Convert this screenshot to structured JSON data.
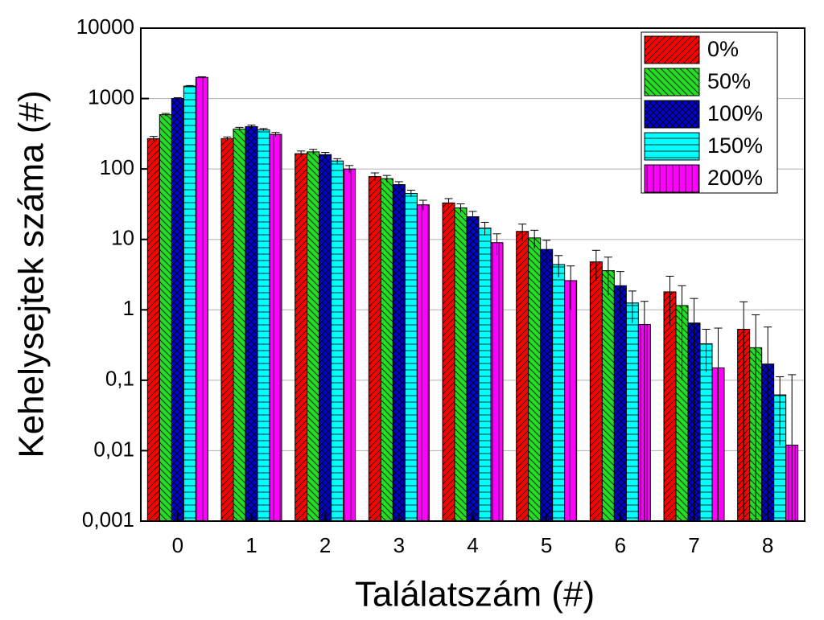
{
  "chart_data": {
    "type": "bar",
    "log_y": true,
    "grid": true,
    "legend": "top-right",
    "xlabel": "Találatszám (#)",
    "ylabel": "Kehelysejtek száma (#)",
    "categories": [
      "0",
      "1",
      "2",
      "3",
      "4",
      "5",
      "6",
      "7",
      "8"
    ],
    "ylim": [
      0.001,
      10000
    ],
    "yticks": [
      {
        "value": 0.001,
        "label": "0,001"
      },
      {
        "value": 0.01,
        "label": "0,01"
      },
      {
        "value": 0.1,
        "label": "0,1"
      },
      1,
      10,
      100,
      1000,
      10000
    ],
    "series": [
      {
        "name": "0%",
        "color": "#ff0000",
        "hatch": "slash",
        "values": [
          270,
          270,
          165,
          78,
          33,
          13,
          4.8,
          1.8,
          0.53
        ],
        "errors": [
          20,
          15,
          15,
          10,
          5,
          3.5,
          2.2,
          1.2,
          0.77
        ]
      },
      {
        "name": "50%",
        "color": "#22dd22",
        "hatch": "backslash",
        "values": [
          590,
          370,
          175,
          73,
          28,
          10.5,
          3.6,
          1.15,
          0.29
        ],
        "errors": [
          25,
          20,
          15,
          8,
          4,
          3,
          2,
          1.05,
          0.56
        ]
      },
      {
        "name": "100%",
        "color": "#0000cc",
        "hatch": "cross",
        "values": [
          1000,
          400,
          160,
          60,
          21,
          7.2,
          2.2,
          0.65,
          0.17
        ],
        "errors": [
          30,
          20,
          12,
          6,
          4,
          2.5,
          1.3,
          0.8,
          0.4
        ]
      },
      {
        "name": "150%",
        "color": "#00ffff",
        "hatch": "horizontal",
        "values": [
          1500,
          360,
          130,
          45,
          14.5,
          4.4,
          1.25,
          0.33,
          0.062
        ],
        "errors": [
          30,
          15,
          10,
          5,
          3,
          1.5,
          0.6,
          0.2,
          0.05
        ]
      },
      {
        "name": "200%",
        "color": "#ff00ff",
        "hatch": "vertical",
        "values": [
          2000,
          310,
          100,
          31,
          9,
          2.6,
          0.62,
          0.15,
          0.012
        ],
        "errors": [
          40,
          20,
          12,
          5,
          3,
          1.6,
          0.7,
          0.4,
          0.108
        ]
      }
    ]
  }
}
